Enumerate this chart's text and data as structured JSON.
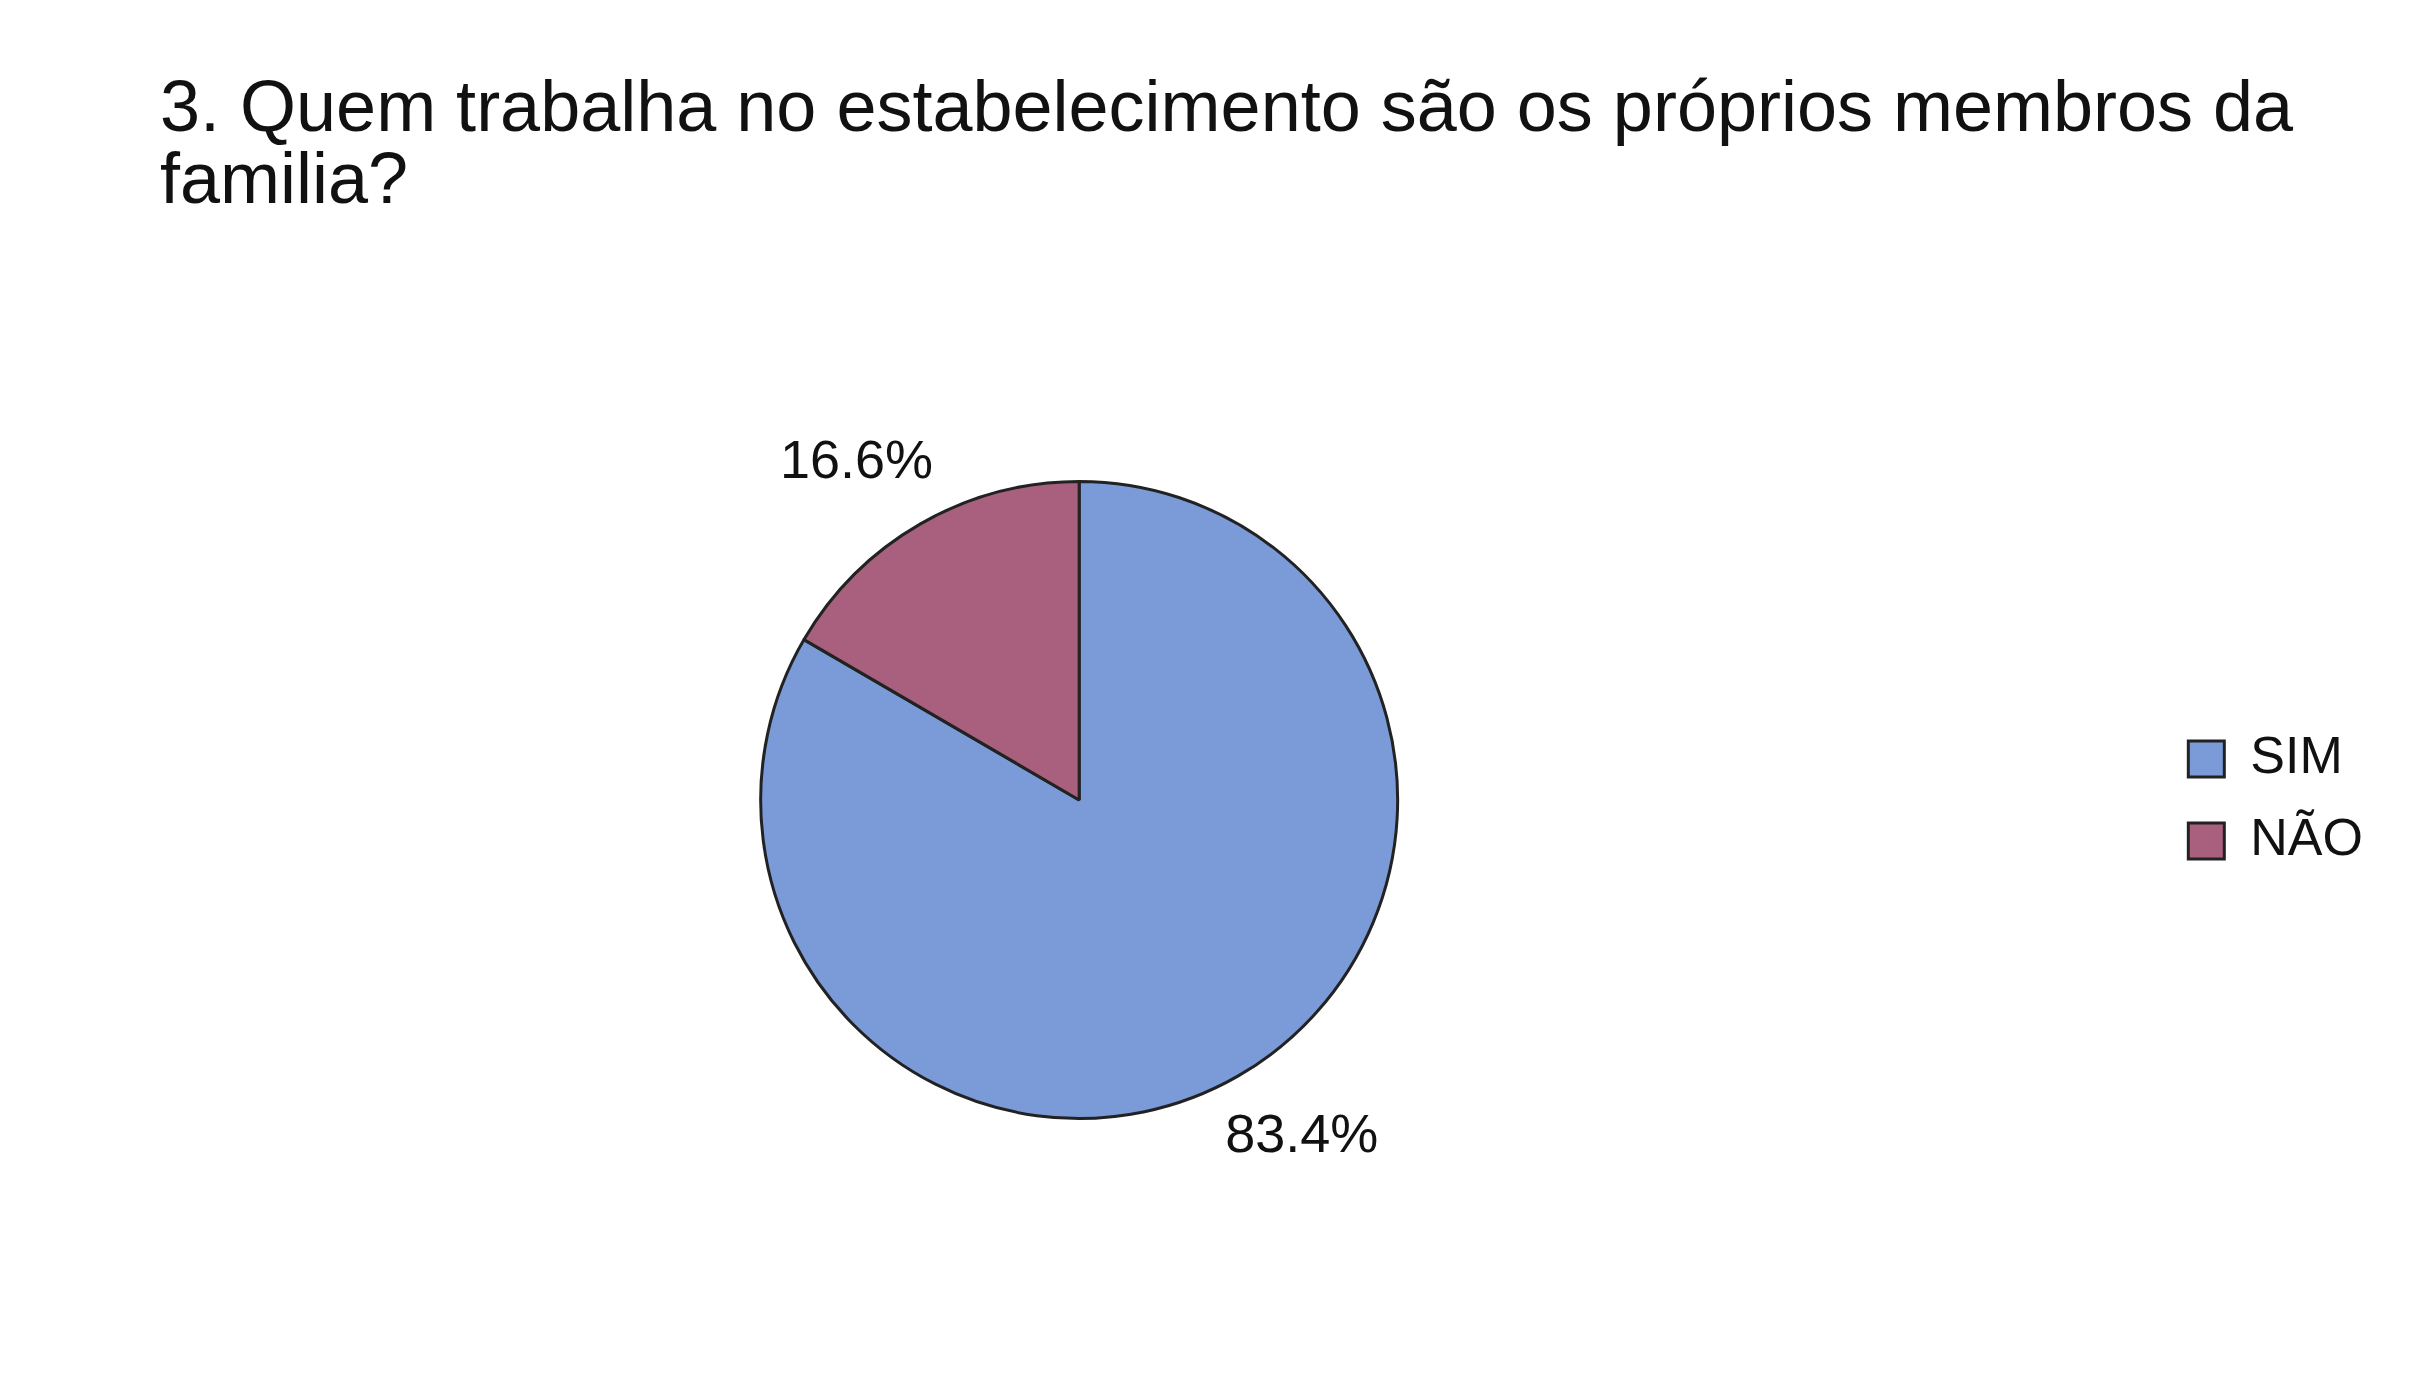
{
  "chart_data": {
    "type": "pie",
    "title": "3. Quem trabalha no estabelecimento são os próprios membros da familia?",
    "categories": [
      "SIM",
      "NÃO"
    ],
    "values": [
      83.4,
      16.6
    ],
    "colors": [
      "#7b9bd8",
      "#a8607e"
    ],
    "value_labels": [
      "83.4%",
      "16.6%"
    ],
    "legend": "right"
  }
}
